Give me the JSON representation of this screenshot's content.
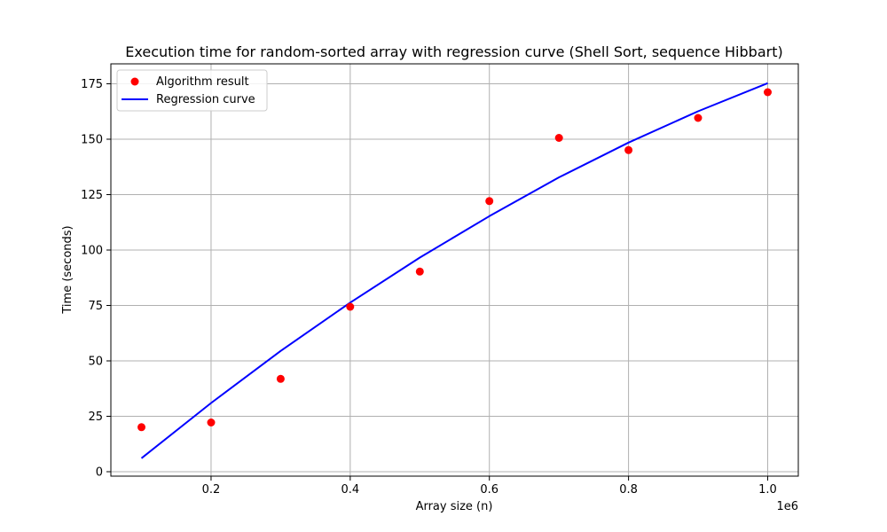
{
  "chart_data": {
    "type": "scatter",
    "title": "Execution time for random-sorted array with regression curve (Shell Sort, sequence Hibbart)",
    "xlabel": "Array size (n)",
    "ylabel": "Time (seconds)",
    "x_offset_label": "1e6",
    "xlim": [
      56000,
      1044000
    ],
    "ylim": [
      -2,
      184
    ],
    "x_ticks": [
      200000,
      400000,
      600000,
      800000,
      1000000
    ],
    "x_tick_labels": [
      "0.2",
      "0.4",
      "0.6",
      "0.8",
      "1.0"
    ],
    "y_ticks": [
      0,
      25,
      50,
      75,
      100,
      125,
      150,
      175
    ],
    "y_tick_labels": [
      "0",
      "25",
      "50",
      "75",
      "100",
      "125",
      "150",
      "175"
    ],
    "grid": true,
    "legend_position": "top-left",
    "series": [
      {
        "name": "Algorithm result",
        "kind": "scatter",
        "color": "#ff0000",
        "x": [
          100000,
          200000,
          300000,
          400000,
          500000,
          600000,
          700000,
          800000,
          900000,
          1000000
        ],
        "y": [
          20.1,
          22.2,
          41.9,
          74.4,
          90.3,
          122.1,
          150.6,
          145.1,
          159.6,
          171.2
        ]
      },
      {
        "name": "Regression curve",
        "kind": "line",
        "color": "#0000ff",
        "x": [
          100000,
          200000,
          300000,
          400000,
          500000,
          600000,
          700000,
          800000,
          900000,
          1000000
        ],
        "y": [
          6.1,
          31.0,
          54.5,
          76.3,
          96.6,
          115.3,
          132.8,
          148.5,
          162.6,
          175.3
        ]
      }
    ]
  }
}
